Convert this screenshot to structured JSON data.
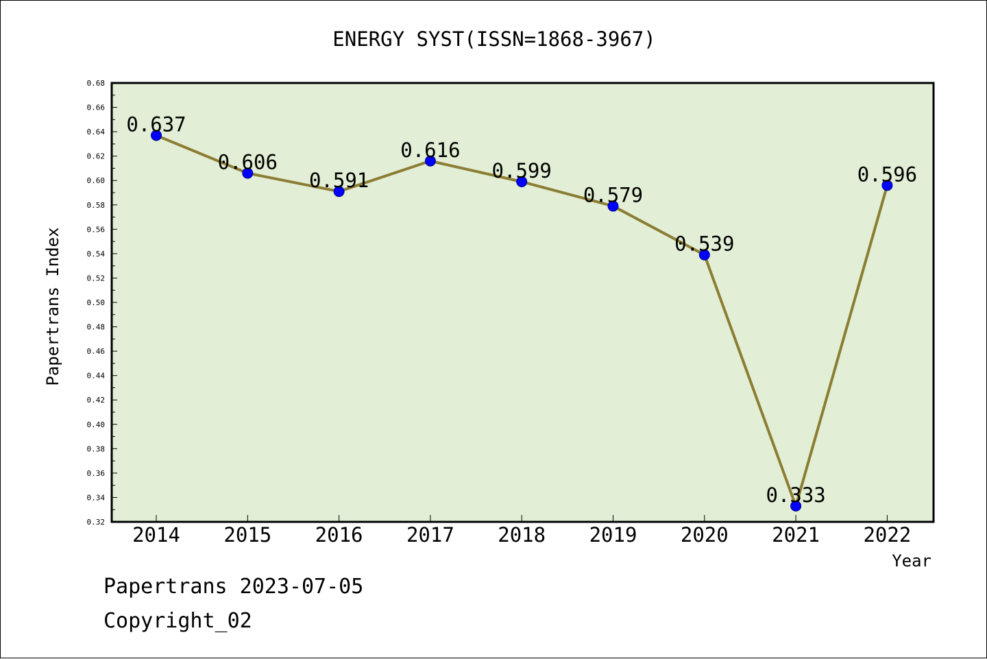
{
  "chart_data": {
    "type": "line",
    "title": "ENERGY SYST(ISSN=1868-3967)",
    "xlabel": "Year",
    "ylabel": "Papertrans Index",
    "categories": [
      "2014",
      "2015",
      "2016",
      "2017",
      "2018",
      "2019",
      "2020",
      "2021",
      "2022"
    ],
    "values": [
      0.637,
      0.606,
      0.591,
      0.616,
      0.599,
      0.579,
      0.539,
      0.333,
      0.596
    ],
    "data_labels": [
      "0.637",
      "0.606",
      "0.591",
      "0.616",
      "0.599",
      "0.579",
      "0.539",
      "0.333",
      "0.596"
    ],
    "ylim": [
      0.32,
      0.68
    ],
    "yticks": [
      "0.32",
      "0.34",
      "0.36",
      "0.38",
      "0.40",
      "0.42",
      "0.44",
      "0.46",
      "0.48",
      "0.50",
      "0.52",
      "0.54",
      "0.56",
      "0.58",
      "0.60",
      "0.62",
      "0.64",
      "0.66",
      "0.68"
    ],
    "grid": false,
    "colors": {
      "plot_background": "#e2efd6",
      "line": "#8b7d33",
      "marker": "#0000ff",
      "marker_edge": "#00008b"
    }
  },
  "footer": {
    "line1": "Papertrans 2023-07-05",
    "line2": "Copyright_02"
  }
}
